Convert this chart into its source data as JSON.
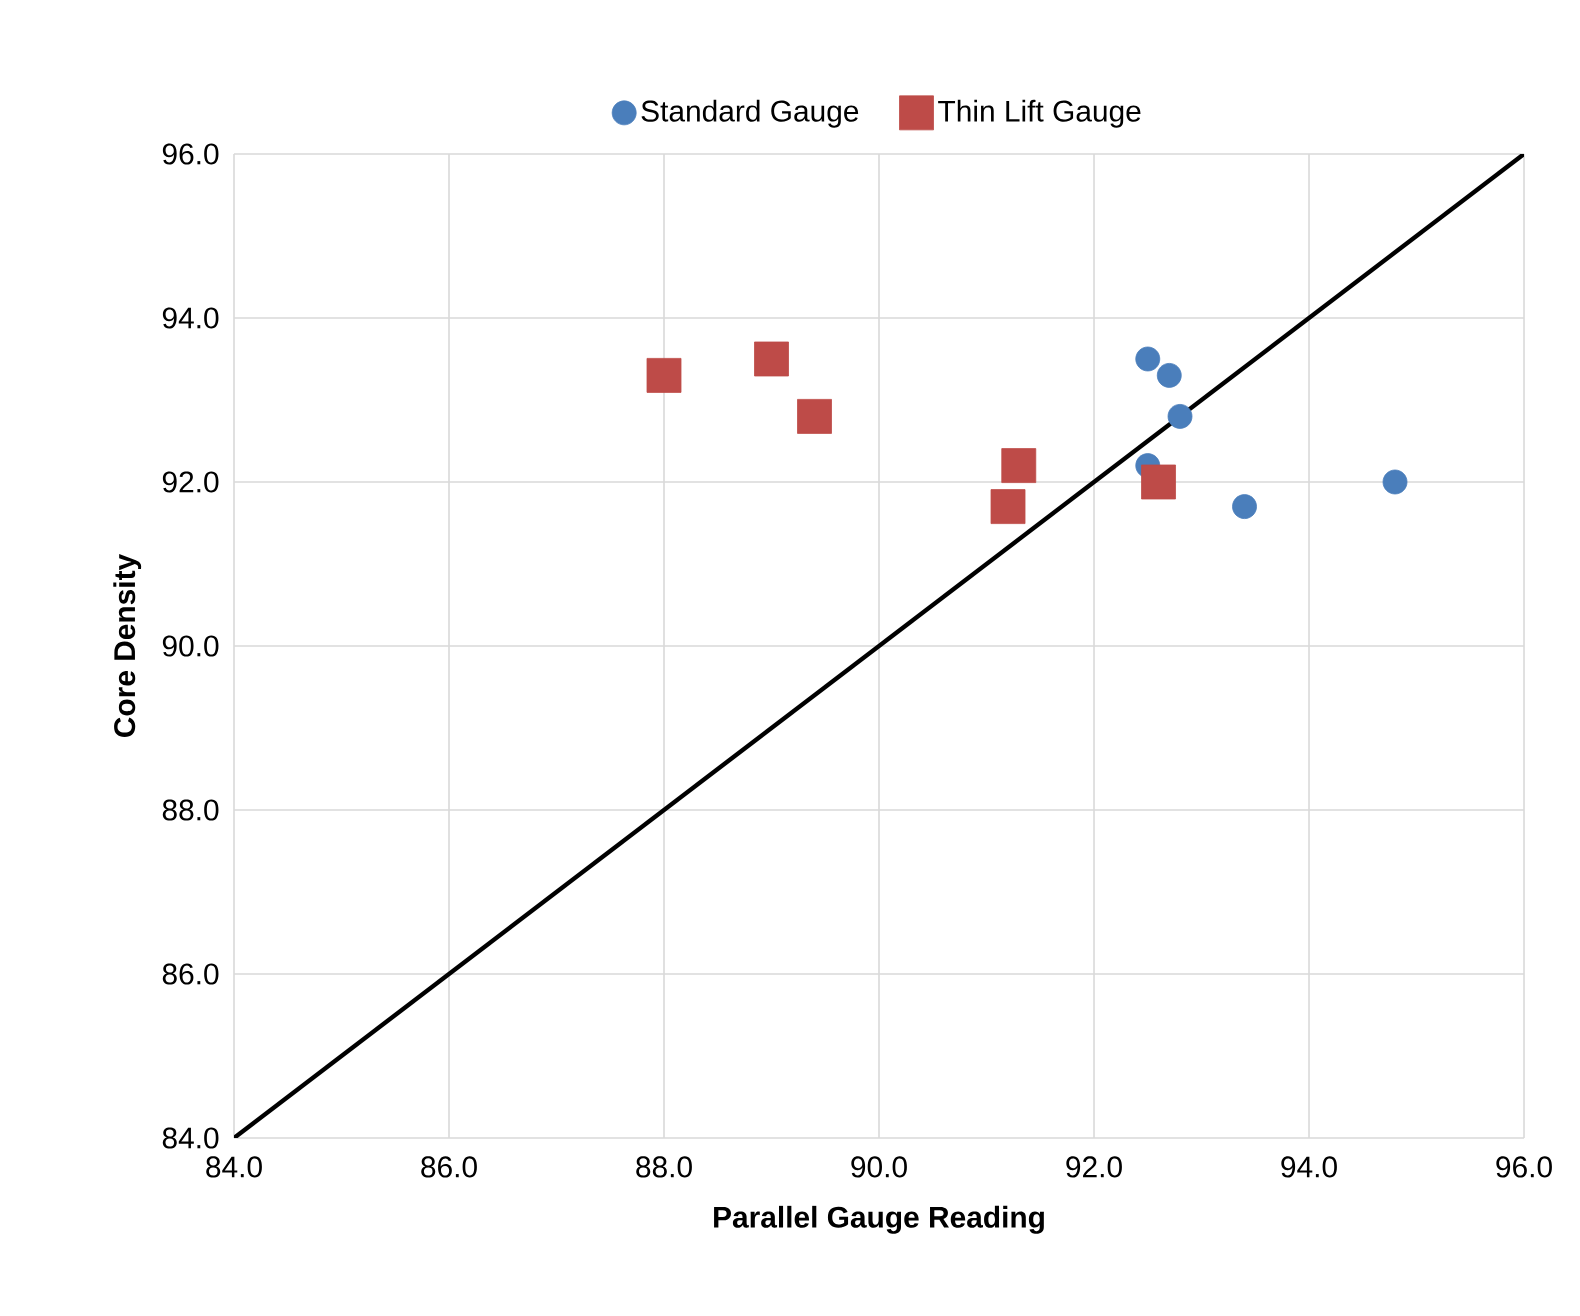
{
  "chart_data": {
    "type": "scatter",
    "xlabel": "Parallel Gauge Reading",
    "ylabel": "Core Density",
    "xlim": [
      84,
      96
    ],
    "ylim": [
      84,
      96
    ],
    "xticks": [
      {
        "value": 84,
        "label": "84.0"
      },
      {
        "value": 86,
        "label": "86.0"
      },
      {
        "value": 88,
        "label": "88.0"
      },
      {
        "value": 90,
        "label": "90.0"
      },
      {
        "value": 92,
        "label": "92.0"
      },
      {
        "value": 94,
        "label": "94.0"
      },
      {
        "value": 96,
        "label": "96.0"
      }
    ],
    "yticks": [
      {
        "value": 84,
        "label": "84.0"
      },
      {
        "value": 86,
        "label": "86.0"
      },
      {
        "value": 88,
        "label": "88.0"
      },
      {
        "value": 90,
        "label": "90.0"
      },
      {
        "value": 92,
        "label": "92.0"
      },
      {
        "value": 94,
        "label": "94.0"
      },
      {
        "value": 96,
        "label": "96.0"
      }
    ],
    "grid": true,
    "legend": "top",
    "series": [
      {
        "name": "Standard Gauge",
        "color": "#4a7ebb",
        "marker": "circle",
        "x": [
          92.5,
          92.7,
          92.8,
          92.5,
          93.4,
          94.8
        ],
        "values": [
          93.5,
          93.3,
          92.8,
          92.2,
          91.7,
          92.0
        ]
      },
      {
        "name": "Thin Lift Gauge",
        "color": "#be4b48",
        "marker": "square",
        "x": [
          88.0,
          89.0,
          89.4,
          91.3,
          91.2,
          92.6
        ],
        "values": [
          93.3,
          93.5,
          92.8,
          92.2,
          91.7,
          92.0
        ]
      },
      {
        "type": "line",
        "color": "#000000",
        "marker": "none",
        "x": [
          84,
          96
        ],
        "values": [
          84,
          96
        ]
      }
    ]
  }
}
